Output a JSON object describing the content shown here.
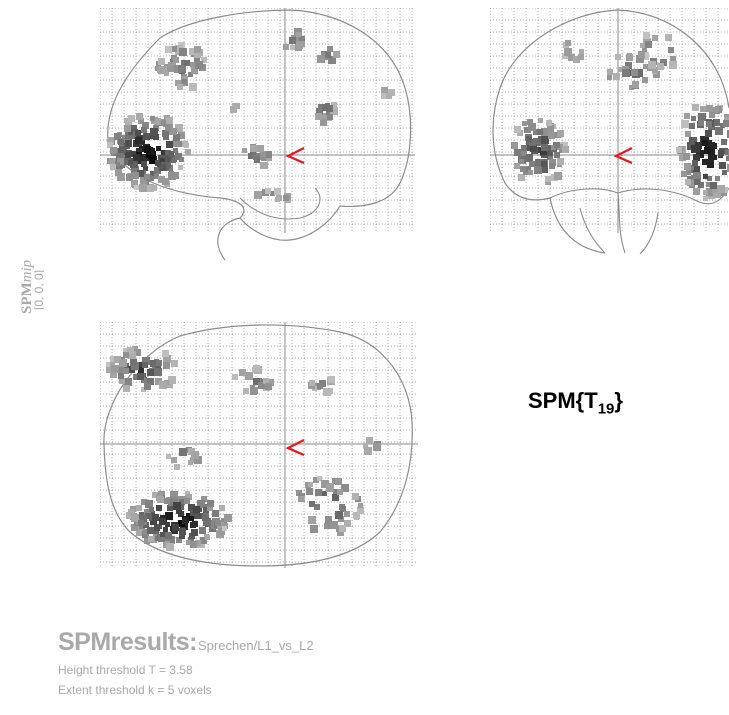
{
  "side_label": {
    "spm": "SPM",
    "mip": "mip",
    "coords": "[0, 0, 0]"
  },
  "stat_label": {
    "main": "SPM{T",
    "sub": "19",
    "close": "}"
  },
  "results": {
    "title": "SPMresults:",
    "path": "Sprechen/L1_vs_L2",
    "height_threshold": "Height threshold T = 3.58",
    "extent_threshold": "Extent threshold k = 5 voxels"
  },
  "colors": {
    "grid": "#9a9a9a",
    "outline": "#8c8c8c",
    "cursor": "#e8141e",
    "faded_text": "#a9a9a9"
  }
}
